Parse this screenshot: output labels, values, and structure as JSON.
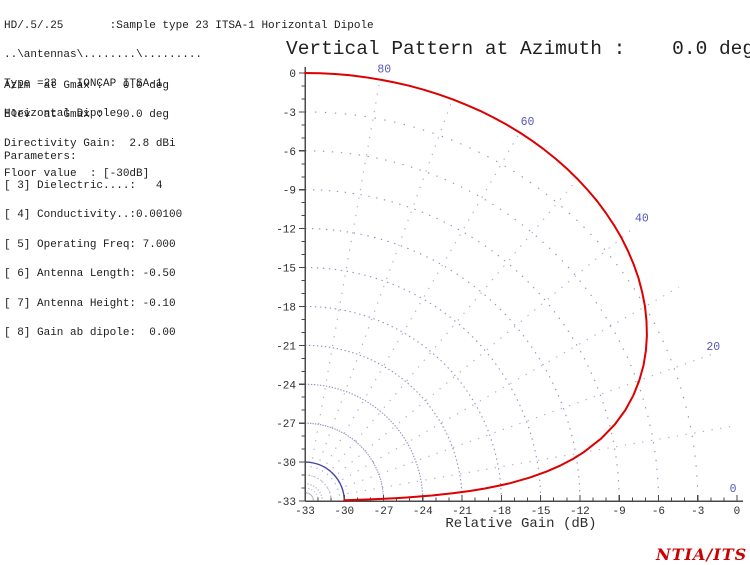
{
  "left_panel": {
    "file_block": [
      "HD/.5/.25       :Sample type 23 ITSA-1 Horizontal Dipole",
      "..\\antennas\\........\\.........",
      "Type =23   IONCAP ITSA-1",
      "Horizontal Dipole"
    ],
    "gain_block": [
      "Azim  at Gmax :   0.0 deg",
      "Elev  at Gmax :  90.0 deg",
      "Directivity Gain:  2.8 dBi",
      "Floor value  : [-30dB]"
    ],
    "params_block": [
      "Parameters:",
      "[ 3] Dielectric....:   4",
      "[ 4] Conductivity..:0.00100",
      "[ 5] Operating Freq: 7.000",
      "[ 6] Antenna Length: -0.50",
      "[ 7] Antenna Height: -0.10",
      "[ 8] Gain ab dipole:  0.00"
    ]
  },
  "chart_title": "Vertical Pattern at Azimuth :    0.0 deg",
  "credit": "NTIA/ITS",
  "chart_data": {
    "type": "line",
    "polar": true,
    "title": "Vertical Pattern at Azimuth :    0.0 deg",
    "xlabel": "Relative Gain (dB)",
    "floor_db": -30,
    "gain_range": [
      -33,
      0
    ],
    "axes": {
      "x_ticks": [
        -33,
        -30,
        -27,
        -24,
        -21,
        -18,
        -15,
        -12,
        -9,
        -6,
        -3,
        0
      ],
      "y_ticks": [
        0,
        -3,
        -6,
        -9,
        -12,
        -15,
        -18,
        -21,
        -24,
        -27,
        -30,
        -33
      ],
      "minor_step_db": 1,
      "major_step_db": 3
    },
    "grid": {
      "rings_dotted_db": [
        -3,
        -6,
        -9,
        -12,
        -15,
        -18,
        -21,
        -24,
        -27
      ],
      "floor_ring_db": -30,
      "sub_floor_rings_db": [
        -31,
        -32
      ],
      "spoke_angles_deg": [
        10,
        20,
        30,
        40,
        50,
        60,
        70,
        80
      ]
    },
    "elevation_labels_deg": [
      80,
      60,
      40,
      20,
      0
    ],
    "series": [
      {
        "name": "relative-gain-pattern",
        "points_elev_gain": [
          [
            90,
            0
          ],
          [
            88,
            0
          ],
          [
            86,
            0
          ],
          [
            84,
            0
          ],
          [
            82,
            0
          ],
          [
            80,
            -0.01
          ],
          [
            78,
            -0.01
          ],
          [
            76,
            -0.01
          ],
          [
            74,
            -0.02
          ],
          [
            72,
            -0.03
          ],
          [
            70,
            -0.04
          ],
          [
            68,
            -0.06
          ],
          [
            66,
            -0.08
          ],
          [
            64,
            -0.11
          ],
          [
            62,
            -0.15
          ],
          [
            60,
            -0.19
          ],
          [
            58,
            -0.25
          ],
          [
            56,
            -0.32
          ],
          [
            54,
            -0.4
          ],
          [
            52,
            -0.49
          ],
          [
            50,
            -0.6
          ],
          [
            48,
            -0.73
          ],
          [
            46,
            -0.87
          ],
          [
            44,
            -1.04
          ],
          [
            42,
            -1.23
          ],
          [
            40,
            -1.44
          ],
          [
            38,
            -1.69
          ],
          [
            36,
            -1.96
          ],
          [
            34,
            -2.27
          ],
          [
            32,
            -2.62
          ],
          [
            30,
            -3.01
          ],
          [
            28,
            -3.45
          ],
          [
            26,
            -3.94
          ],
          [
            24,
            -4.49
          ],
          [
            22,
            -5.11
          ],
          [
            20,
            -5.82
          ],
          [
            18,
            -6.62
          ],
          [
            16,
            -7.54
          ],
          [
            14,
            -8.61
          ],
          [
            12,
            -9.88
          ],
          [
            10,
            -11.39
          ],
          [
            9,
            -12.28
          ],
          [
            8,
            -13.28
          ],
          [
            7,
            -14.41
          ],
          [
            6,
            -15.73
          ],
          [
            5,
            -17.3
          ],
          [
            4.5,
            -18.21
          ],
          [
            4,
            -19.22
          ],
          [
            3.5,
            -20.38
          ],
          [
            3,
            -21.71
          ],
          [
            2.5,
            -23.29
          ],
          [
            2,
            -25.23
          ],
          [
            1.8,
            -26.14
          ],
          [
            1.6,
            -27.16
          ],
          [
            1.4,
            -28.32
          ],
          [
            1.2,
            -29.66
          ],
          [
            1.15,
            -30
          ],
          [
            1,
            -30
          ],
          [
            0.5,
            -30
          ],
          [
            0,
            -30
          ]
        ]
      }
    ],
    "colors": {
      "curve": "#dd0000",
      "axis": "#4a4a4a",
      "tick_label": "#2e2e2e",
      "ring_dotted": "#8f8fbf",
      "spoke": "#b0b0cc",
      "floor_ring": "#4343a8",
      "sub_floor_ring": "#b9b9d6",
      "elev_label": "#5858b8",
      "credit": "#cc0000"
    }
  }
}
